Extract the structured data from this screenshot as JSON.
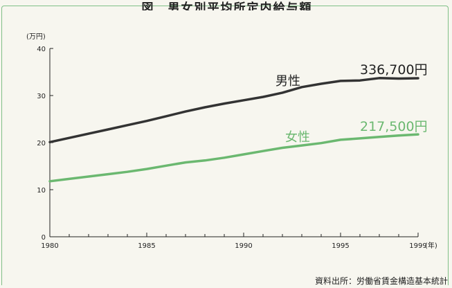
{
  "title": "図　男女別平均所定内給与額",
  "source": "資料出所：労働省賃金構造基本統計",
  "chart_data": {
    "type": "line",
    "y_unit": "(万円)",
    "x_unit": "(年)",
    "xlim": [
      1980,
      1999
    ],
    "ylim": [
      0,
      40
    ],
    "x_ticks": [
      "1980",
      "1985",
      "1990",
      "1995",
      "1999"
    ],
    "y_ticks": [
      "0",
      "10",
      "20",
      "30",
      "40"
    ],
    "x": [
      1980,
      1981,
      1982,
      1983,
      1984,
      1985,
      1986,
      1987,
      1988,
      1989,
      1990,
      1991,
      1992,
      1993,
      1994,
      1995,
      1996,
      1997,
      1998,
      1999
    ],
    "series": [
      {
        "name": "男性",
        "color": "#333333",
        "end_label": "336,700円",
        "values": [
          20.1,
          21.0,
          21.9,
          22.8,
          23.7,
          24.6,
          25.6,
          26.6,
          27.5,
          28.3,
          29.0,
          29.7,
          30.6,
          31.8,
          32.5,
          33.1,
          33.2,
          33.7,
          33.6,
          33.67
        ]
      },
      {
        "name": "女性",
        "color": "#6bb870",
        "end_label": "217,500円",
        "values": [
          11.8,
          12.3,
          12.8,
          13.3,
          13.8,
          14.4,
          15.1,
          15.8,
          16.2,
          16.8,
          17.5,
          18.2,
          18.9,
          19.4,
          19.9,
          20.6,
          20.9,
          21.2,
          21.5,
          21.75
        ]
      }
    ]
  }
}
